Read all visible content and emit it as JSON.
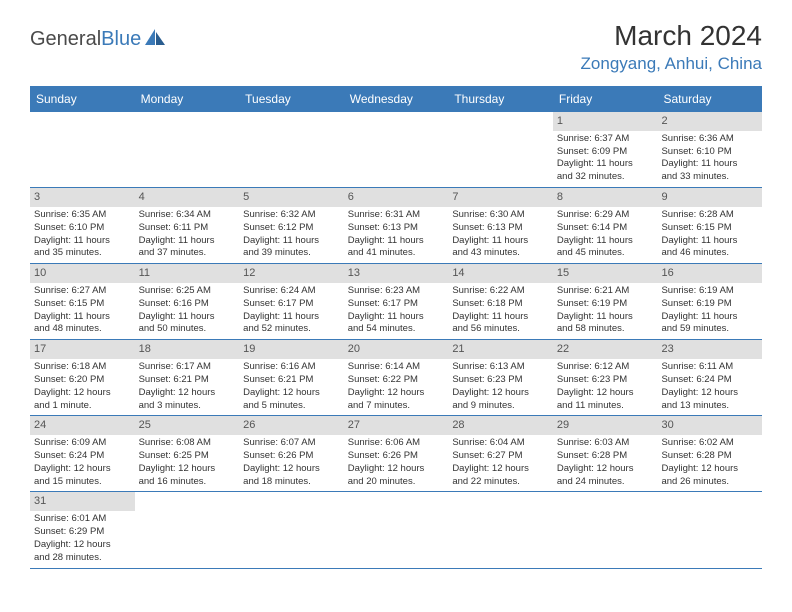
{
  "logo": {
    "word1": "General",
    "word2": "Blue"
  },
  "title": "March 2024",
  "location": "Zongyang, Anhui, China",
  "colors": {
    "header_bg": "#3b7ab8",
    "header_text": "#ffffff",
    "daynum_bg": "#e0e0e0",
    "border": "#3b7ab8",
    "text": "#333333",
    "logo_gray": "#4a4a4a",
    "logo_blue": "#3b7ab8"
  },
  "day_names": [
    "Sunday",
    "Monday",
    "Tuesday",
    "Wednesday",
    "Thursday",
    "Friday",
    "Saturday"
  ],
  "weeks": [
    [
      {
        "empty": true
      },
      {
        "empty": true
      },
      {
        "empty": true
      },
      {
        "empty": true
      },
      {
        "empty": true
      },
      {
        "n": "1",
        "sunrise": "Sunrise: 6:37 AM",
        "sunset": "Sunset: 6:09 PM",
        "day1": "Daylight: 11 hours",
        "day2": "and 32 minutes."
      },
      {
        "n": "2",
        "sunrise": "Sunrise: 6:36 AM",
        "sunset": "Sunset: 6:10 PM",
        "day1": "Daylight: 11 hours",
        "day2": "and 33 minutes."
      }
    ],
    [
      {
        "n": "3",
        "sunrise": "Sunrise: 6:35 AM",
        "sunset": "Sunset: 6:10 PM",
        "day1": "Daylight: 11 hours",
        "day2": "and 35 minutes."
      },
      {
        "n": "4",
        "sunrise": "Sunrise: 6:34 AM",
        "sunset": "Sunset: 6:11 PM",
        "day1": "Daylight: 11 hours",
        "day2": "and 37 minutes."
      },
      {
        "n": "5",
        "sunrise": "Sunrise: 6:32 AM",
        "sunset": "Sunset: 6:12 PM",
        "day1": "Daylight: 11 hours",
        "day2": "and 39 minutes."
      },
      {
        "n": "6",
        "sunrise": "Sunrise: 6:31 AM",
        "sunset": "Sunset: 6:13 PM",
        "day1": "Daylight: 11 hours",
        "day2": "and 41 minutes."
      },
      {
        "n": "7",
        "sunrise": "Sunrise: 6:30 AM",
        "sunset": "Sunset: 6:13 PM",
        "day1": "Daylight: 11 hours",
        "day2": "and 43 minutes."
      },
      {
        "n": "8",
        "sunrise": "Sunrise: 6:29 AM",
        "sunset": "Sunset: 6:14 PM",
        "day1": "Daylight: 11 hours",
        "day2": "and 45 minutes."
      },
      {
        "n": "9",
        "sunrise": "Sunrise: 6:28 AM",
        "sunset": "Sunset: 6:15 PM",
        "day1": "Daylight: 11 hours",
        "day2": "and 46 minutes."
      }
    ],
    [
      {
        "n": "10",
        "sunrise": "Sunrise: 6:27 AM",
        "sunset": "Sunset: 6:15 PM",
        "day1": "Daylight: 11 hours",
        "day2": "and 48 minutes."
      },
      {
        "n": "11",
        "sunrise": "Sunrise: 6:25 AM",
        "sunset": "Sunset: 6:16 PM",
        "day1": "Daylight: 11 hours",
        "day2": "and 50 minutes."
      },
      {
        "n": "12",
        "sunrise": "Sunrise: 6:24 AM",
        "sunset": "Sunset: 6:17 PM",
        "day1": "Daylight: 11 hours",
        "day2": "and 52 minutes."
      },
      {
        "n": "13",
        "sunrise": "Sunrise: 6:23 AM",
        "sunset": "Sunset: 6:17 PM",
        "day1": "Daylight: 11 hours",
        "day2": "and 54 minutes."
      },
      {
        "n": "14",
        "sunrise": "Sunrise: 6:22 AM",
        "sunset": "Sunset: 6:18 PM",
        "day1": "Daylight: 11 hours",
        "day2": "and 56 minutes."
      },
      {
        "n": "15",
        "sunrise": "Sunrise: 6:21 AM",
        "sunset": "Sunset: 6:19 PM",
        "day1": "Daylight: 11 hours",
        "day2": "and 58 minutes."
      },
      {
        "n": "16",
        "sunrise": "Sunrise: 6:19 AM",
        "sunset": "Sunset: 6:19 PM",
        "day1": "Daylight: 11 hours",
        "day2": "and 59 minutes."
      }
    ],
    [
      {
        "n": "17",
        "sunrise": "Sunrise: 6:18 AM",
        "sunset": "Sunset: 6:20 PM",
        "day1": "Daylight: 12 hours",
        "day2": "and 1 minute."
      },
      {
        "n": "18",
        "sunrise": "Sunrise: 6:17 AM",
        "sunset": "Sunset: 6:21 PM",
        "day1": "Daylight: 12 hours",
        "day2": "and 3 minutes."
      },
      {
        "n": "19",
        "sunrise": "Sunrise: 6:16 AM",
        "sunset": "Sunset: 6:21 PM",
        "day1": "Daylight: 12 hours",
        "day2": "and 5 minutes."
      },
      {
        "n": "20",
        "sunrise": "Sunrise: 6:14 AM",
        "sunset": "Sunset: 6:22 PM",
        "day1": "Daylight: 12 hours",
        "day2": "and 7 minutes."
      },
      {
        "n": "21",
        "sunrise": "Sunrise: 6:13 AM",
        "sunset": "Sunset: 6:23 PM",
        "day1": "Daylight: 12 hours",
        "day2": "and 9 minutes."
      },
      {
        "n": "22",
        "sunrise": "Sunrise: 6:12 AM",
        "sunset": "Sunset: 6:23 PM",
        "day1": "Daylight: 12 hours",
        "day2": "and 11 minutes."
      },
      {
        "n": "23",
        "sunrise": "Sunrise: 6:11 AM",
        "sunset": "Sunset: 6:24 PM",
        "day1": "Daylight: 12 hours",
        "day2": "and 13 minutes."
      }
    ],
    [
      {
        "n": "24",
        "sunrise": "Sunrise: 6:09 AM",
        "sunset": "Sunset: 6:24 PM",
        "day1": "Daylight: 12 hours",
        "day2": "and 15 minutes."
      },
      {
        "n": "25",
        "sunrise": "Sunrise: 6:08 AM",
        "sunset": "Sunset: 6:25 PM",
        "day1": "Daylight: 12 hours",
        "day2": "and 16 minutes."
      },
      {
        "n": "26",
        "sunrise": "Sunrise: 6:07 AM",
        "sunset": "Sunset: 6:26 PM",
        "day1": "Daylight: 12 hours",
        "day2": "and 18 minutes."
      },
      {
        "n": "27",
        "sunrise": "Sunrise: 6:06 AM",
        "sunset": "Sunset: 6:26 PM",
        "day1": "Daylight: 12 hours",
        "day2": "and 20 minutes."
      },
      {
        "n": "28",
        "sunrise": "Sunrise: 6:04 AM",
        "sunset": "Sunset: 6:27 PM",
        "day1": "Daylight: 12 hours",
        "day2": "and 22 minutes."
      },
      {
        "n": "29",
        "sunrise": "Sunrise: 6:03 AM",
        "sunset": "Sunset: 6:28 PM",
        "day1": "Daylight: 12 hours",
        "day2": "and 24 minutes."
      },
      {
        "n": "30",
        "sunrise": "Sunrise: 6:02 AM",
        "sunset": "Sunset: 6:28 PM",
        "day1": "Daylight: 12 hours",
        "day2": "and 26 minutes."
      }
    ],
    [
      {
        "n": "31",
        "sunrise": "Sunrise: 6:01 AM",
        "sunset": "Sunset: 6:29 PM",
        "day1": "Daylight: 12 hours",
        "day2": "and 28 minutes."
      },
      {
        "empty": true
      },
      {
        "empty": true
      },
      {
        "empty": true
      },
      {
        "empty": true
      },
      {
        "empty": true
      },
      {
        "empty": true
      }
    ]
  ]
}
